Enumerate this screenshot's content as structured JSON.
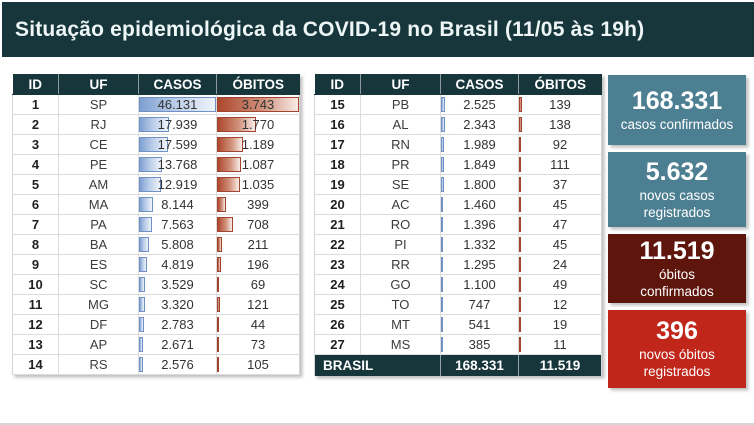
{
  "header": {
    "title": "Situação epidemiológica da COVID-19 no Brasil (11/05 às 19h)"
  },
  "columns": [
    "ID",
    "UF",
    "CASOS",
    "ÓBITOS"
  ],
  "tables": [
    {
      "rows": [
        {
          "id": "1",
          "uf": "SP",
          "casos": "46.131",
          "obitos": "3.743"
        },
        {
          "id": "2",
          "uf": "RJ",
          "casos": "17.939",
          "obitos": "1.770"
        },
        {
          "id": "3",
          "uf": "CE",
          "casos": "17.599",
          "obitos": "1.189"
        },
        {
          "id": "4",
          "uf": "PE",
          "casos": "13.768",
          "obitos": "1.087"
        },
        {
          "id": "5",
          "uf": "AM",
          "casos": "12.919",
          "obitos": "1.035"
        },
        {
          "id": "6",
          "uf": "MA",
          "casos": "8.144",
          "obitos": "399"
        },
        {
          "id": "7",
          "uf": "PA",
          "casos": "7.563",
          "obitos": "708"
        },
        {
          "id": "8",
          "uf": "BA",
          "casos": "5.808",
          "obitos": "211"
        },
        {
          "id": "9",
          "uf": "ES",
          "casos": "4.819",
          "obitos": "196"
        },
        {
          "id": "10",
          "uf": "SC",
          "casos": "3.529",
          "obitos": "69"
        },
        {
          "id": "11",
          "uf": "MG",
          "casos": "3.320",
          "obitos": "121"
        },
        {
          "id": "12",
          "uf": "DF",
          "casos": "2.783",
          "obitos": "44"
        },
        {
          "id": "13",
          "uf": "AP",
          "casos": "2.671",
          "obitos": "73"
        },
        {
          "id": "14",
          "uf": "RS",
          "casos": "2.576",
          "obitos": "105"
        }
      ]
    },
    {
      "rows": [
        {
          "id": "15",
          "uf": "PB",
          "casos": "2.525",
          "obitos": "139"
        },
        {
          "id": "16",
          "uf": "AL",
          "casos": "2.343",
          "obitos": "138"
        },
        {
          "id": "17",
          "uf": "RN",
          "casos": "1.989",
          "obitos": "92"
        },
        {
          "id": "18",
          "uf": "PR",
          "casos": "1.849",
          "obitos": "111"
        },
        {
          "id": "19",
          "uf": "SE",
          "casos": "1.800",
          "obitos": "37"
        },
        {
          "id": "20",
          "uf": "AC",
          "casos": "1.460",
          "obitos": "45"
        },
        {
          "id": "21",
          "uf": "RO",
          "casos": "1.396",
          "obitos": "47"
        },
        {
          "id": "22",
          "uf": "PI",
          "casos": "1.332",
          "obitos": "45"
        },
        {
          "id": "23",
          "uf": "RR",
          "casos": "1.295",
          "obitos": "24"
        },
        {
          "id": "24",
          "uf": "GO",
          "casos": "1.100",
          "obitos": "49"
        },
        {
          "id": "25",
          "uf": "TO",
          "casos": "747",
          "obitos": "12"
        },
        {
          "id": "26",
          "uf": "MT",
          "casos": "541",
          "obitos": "19"
        },
        {
          "id": "27",
          "uf": "MS",
          "casos": "385",
          "obitos": "11"
        }
      ],
      "total_row": {
        "label": "BRASIL",
        "casos": "168.331",
        "obitos": "11.519"
      }
    }
  ],
  "summary_boxes": [
    {
      "value": "168.331",
      "label_lines": [
        "casos confirmados"
      ],
      "color": "#4d7f92"
    },
    {
      "value": "5.632",
      "label_lines": [
        "novos casos",
        "registrados"
      ],
      "color": "#4d7f92"
    },
    {
      "value": "11.519",
      "label_lines": [
        "óbitos",
        "confirmados"
      ],
      "color": "#5e150c"
    },
    {
      "value": "396",
      "label_lines": [
        "novos óbitos",
        "registrados"
      ],
      "color": "#c1261b"
    }
  ],
  "colors": {
    "header_bg": "#16363c",
    "table_header_bg": "#16363c",
    "total_row_bg": "#16363c",
    "casos_bar": "#7fa0d1",
    "obitos_bar": "#ad482e",
    "teal_box": "#4d7f92",
    "dark_red_box": "#5e150c",
    "red_box": "#c1261b"
  },
  "chart_data": {
    "type": "table",
    "title": "Situação epidemiológica da COVID-19 no Brasil (11/05 às 19h)",
    "columns": [
      "ID",
      "UF",
      "CASOS",
      "ÓBITOS"
    ],
    "rows": [
      [
        1,
        "SP",
        46131,
        3743
      ],
      [
        2,
        "RJ",
        17939,
        1770
      ],
      [
        3,
        "CE",
        17599,
        1189
      ],
      [
        4,
        "PE",
        13768,
        1087
      ],
      [
        5,
        "AM",
        12919,
        1035
      ],
      [
        6,
        "MA",
        8144,
        399
      ],
      [
        7,
        "PA",
        7563,
        708
      ],
      [
        8,
        "BA",
        5808,
        211
      ],
      [
        9,
        "ES",
        4819,
        196
      ],
      [
        10,
        "SC",
        3529,
        69
      ],
      [
        11,
        "MG",
        3320,
        121
      ],
      [
        12,
        "DF",
        2783,
        44
      ],
      [
        13,
        "AP",
        2671,
        73
      ],
      [
        14,
        "RS",
        2576,
        105
      ],
      [
        15,
        "PB",
        2525,
        139
      ],
      [
        16,
        "AL",
        2343,
        138
      ],
      [
        17,
        "RN",
        1989,
        92
      ],
      [
        18,
        "PR",
        1849,
        111
      ],
      [
        19,
        "SE",
        1800,
        37
      ],
      [
        20,
        "AC",
        1460,
        45
      ],
      [
        21,
        "RO",
        1396,
        47
      ],
      [
        22,
        "PI",
        1332,
        45
      ],
      [
        23,
        "RR",
        1295,
        24
      ],
      [
        24,
        "GO",
        1100,
        49
      ],
      [
        25,
        "TO",
        747,
        12
      ],
      [
        26,
        "MT",
        541,
        19
      ],
      [
        27,
        "MS",
        385,
        11
      ]
    ],
    "total": {
      "label": "BRASIL",
      "casos": 168331,
      "obitos": 11519
    },
    "data_bars": {
      "casos_max": 46131,
      "obitos_max": 3743,
      "casos_color": "#7fa0d1",
      "obitos_color": "#ad482e"
    },
    "summary": [
      {
        "value": 168331,
        "label": "casos confirmados"
      },
      {
        "value": 5632,
        "label": "novos casos registrados"
      },
      {
        "value": 11519,
        "label": "óbitos confirmados"
      },
      {
        "value": 396,
        "label": "novos óbitos registrados"
      }
    ]
  }
}
